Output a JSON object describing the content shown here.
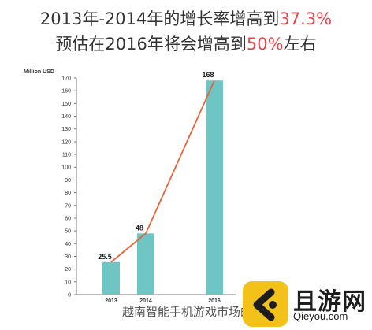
{
  "header": {
    "line1_prefix": "2013年-2014年的增长率增高到",
    "line1_highlight": "37.3%",
    "line2_prefix": "预估在2016年将会增高到",
    "line2_highlight": "50%",
    "line2_suffix": "左右",
    "highlight_color": "#e8464b"
  },
  "caption": "越南智能手机游戏市场的",
  "watermark": {
    "name": "且游网",
    "url": "Qieyou.com"
  },
  "chart_data": {
    "type": "bar",
    "categories": [
      "2013",
      "2014",
      "2016"
    ],
    "values": [
      25.5,
      48,
      168
    ],
    "data_labels": [
      "25.5",
      "48",
      "168"
    ],
    "ylabel": "Million USD",
    "ylim": [
      0,
      170
    ],
    "yticks": [
      0,
      10,
      20,
      30,
      40,
      50,
      60,
      70,
      80,
      90,
      100,
      110,
      120,
      130,
      140,
      150,
      160,
      170
    ],
    "bar_color": "#6fc4c4",
    "trend_line_color": "#e8643a",
    "grid": false,
    "legend": "none"
  }
}
